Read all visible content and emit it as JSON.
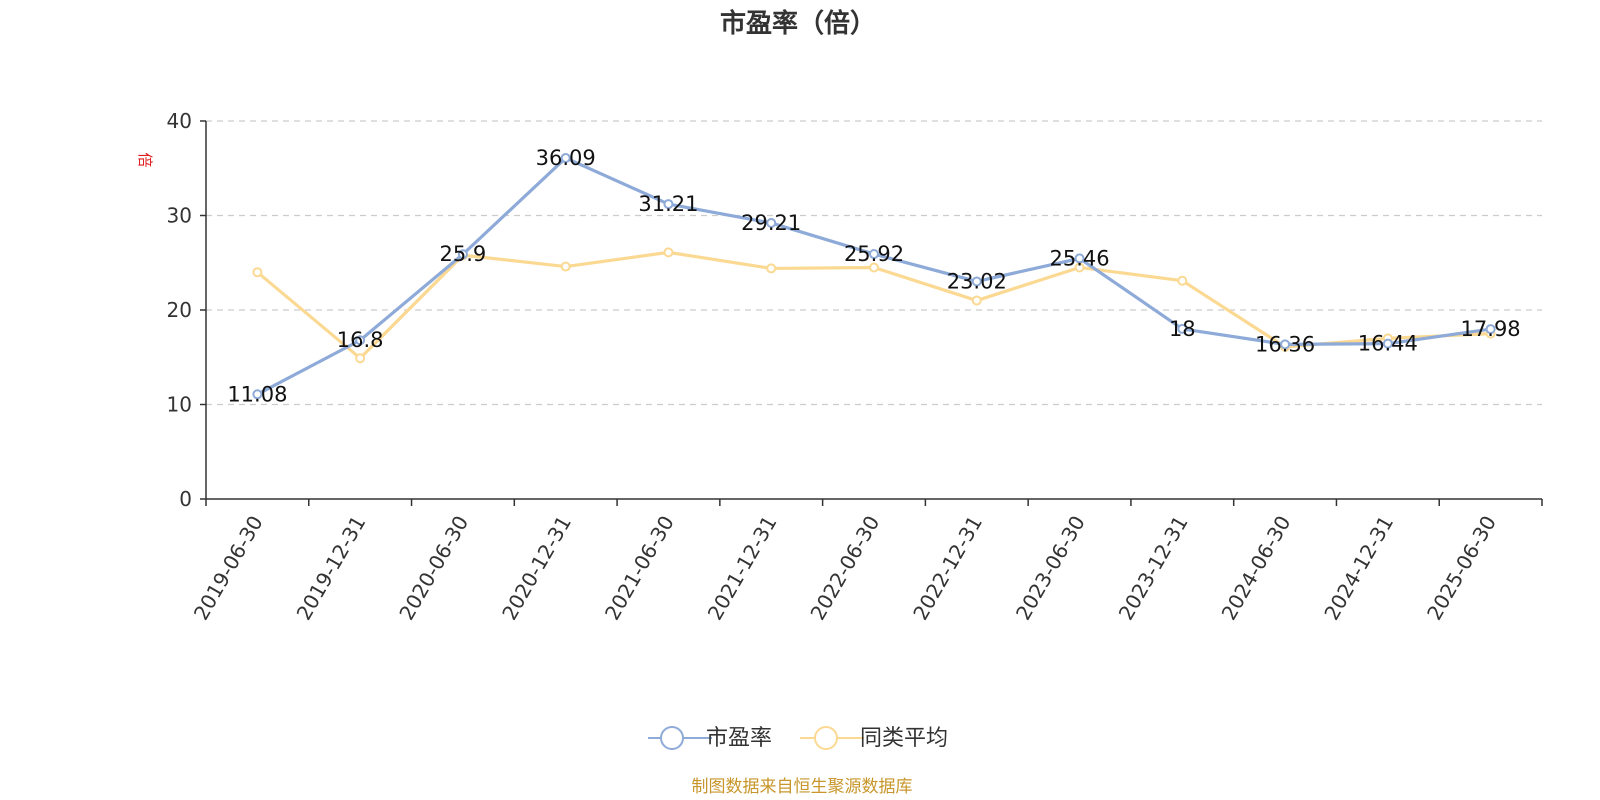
{
  "chart_data": {
    "type": "line",
    "title": "市盈率（倍）",
    "ylabel": "倍",
    "ylim": [
      0,
      40
    ],
    "yticks": [
      0,
      10,
      20,
      30,
      40
    ],
    "grid": true,
    "legend_position": "bottom",
    "categories": [
      "2019-06-30",
      "2019-12-31",
      "2020-06-30",
      "2020-12-31",
      "2021-06-30",
      "2021-12-31",
      "2022-06-30",
      "2022-12-31",
      "2023-06-30",
      "2023-12-31",
      "2024-06-30",
      "2024-12-31",
      "2025-06-30"
    ],
    "series": [
      {
        "name": "市盈率",
        "color": "#8eaad8",
        "values": [
          11.08,
          16.8,
          25.9,
          36.09,
          31.21,
          29.21,
          25.92,
          23.02,
          25.46,
          18,
          16.36,
          16.44,
          17.98
        ],
        "labels": [
          "11.08",
          "16.8",
          "25.9",
          "36.09",
          "31.21",
          "29.21",
          "25.92",
          "23.02",
          "25.46",
          "18",
          "16.36",
          "16.44",
          "17.98"
        ]
      },
      {
        "name": "同类平均",
        "color": "#fbd993",
        "values": [
          24.0,
          14.9,
          25.8,
          24.6,
          26.1,
          24.4,
          24.5,
          21.0,
          24.5,
          23.1,
          16.1,
          17.0,
          17.5
        ]
      }
    ]
  },
  "source": "制图数据来自恒生聚源数据库"
}
